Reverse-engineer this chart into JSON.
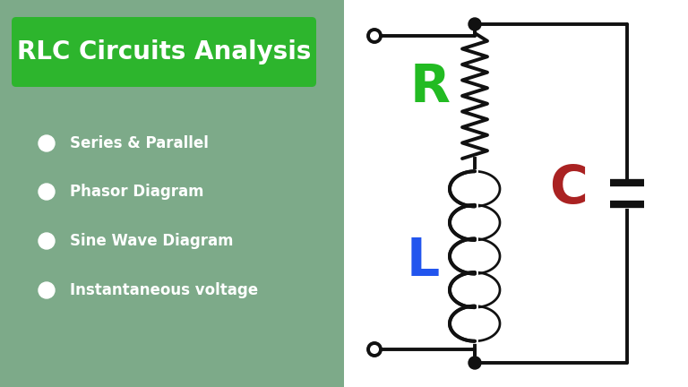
{
  "bg_left_color": "#7daa89",
  "bg_right_color": "#ffffff",
  "title_box_color": "#2db52d",
  "title_text": "RLC Circuits Analysis",
  "title_text_color": "#ffffff",
  "bullet_items": [
    "Series & Parallel",
    "Phasor Diagram",
    "Sine Wave Diagram",
    "Instantaneous voltage"
  ],
  "bullet_color": "#ffffff",
  "bullet_text_color": "#ffffff",
  "R_color": "#22bb22",
  "L_color": "#2255ee",
  "C_color": "#aa2222",
  "circuit_line_color": "#111111"
}
